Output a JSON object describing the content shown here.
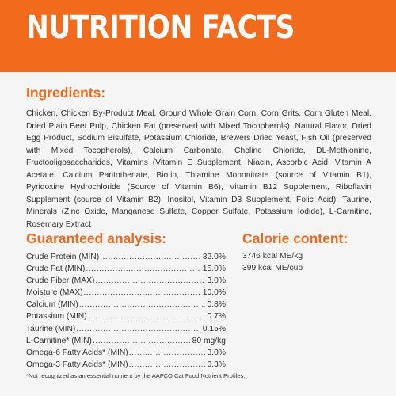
{
  "banner": {
    "title": "NUTRITION FACTS"
  },
  "ingredients": {
    "heading": "Ingredients:",
    "text": "Chicken, Chicken By-Product Meal, Ground Whole Grain Corn, Corn Grits, Corn Gluten Meal, Dried Plain Beet Pulp, Chicken Fat (preserved with Mixed Tocopherols), Natural Flavor, Dried Egg Product, Sodium Bisulfate, Potassium Chloride, Brewers Dried Yeast, Fish Oil (preserved with Mixed Tocopherols), Calcium Carbonate, Choline Chloride, DL-Methionine, Fructooligosaccharides, Vitamins (Vitamin E Supplement, Niacin, Ascorbic Acid, Vitamin A Acetate, Calcium Pantothenate, Biotin, Thiamine Mononitrate (source of Vitamin B1), Pyridoxine Hydrochloride (Source of Vitamin B6), Vitamin B12 Supplement, Riboflavin Supplement (source of Vitamin B2), Inositol, Vitamin D3 Supplement, Folic Acid), Taurine, Minerals (Zinc Oxide, Manganese Sulfate, Copper Sulfate, Potassium Iodide), L-Carnitine, Rosemary Extract"
  },
  "analysis": {
    "heading": "Guaranteed analysis:",
    "rows": [
      {
        "label": "Crude Protein (MIN)",
        "value": "32.0%"
      },
      {
        "label": "Crude Fat (MIN)",
        "value": "15.0%"
      },
      {
        "label": "Crude Fiber (MAX)",
        "value": "3.0%"
      },
      {
        "label": "Moisture (MAX)",
        "value": "10.0%"
      },
      {
        "label": "Calcium (MIN)",
        "value": "0.8%"
      },
      {
        "label": "Potassium (MIN)",
        "value": "0.7%"
      },
      {
        "label": "Taurine (MIN)",
        "value": "0.15%"
      },
      {
        "label": "L-Carnitine* (MIN)",
        "value": "80 mg/kg"
      },
      {
        "label": "Omega-6 Fatty Acids* (MIN)",
        "value": "3.0%"
      },
      {
        "label": "Omega-3 Fatty Acids* (MIN)",
        "value": "0.3%"
      }
    ]
  },
  "calorie": {
    "heading": "Calorie content:",
    "lines": [
      "3746 kcal ME/kg",
      "399 kcal ME/cup"
    ]
  },
  "footnote": "*Not recognized as an essential nutrient by the AAFCO Cat Food Nutrient Profiles.",
  "colors": {
    "banner": "#f26a1b",
    "heading": "#ec6a22",
    "background": "#f5f5f5"
  }
}
